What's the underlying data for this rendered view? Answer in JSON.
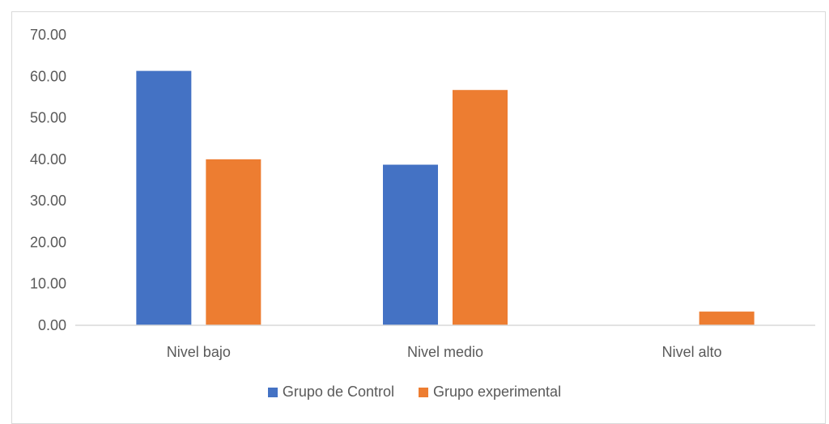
{
  "chart_data": {
    "type": "bar",
    "categories": [
      "Nivel bajo",
      "Nivel medio",
      "Nivel alto"
    ],
    "series": [
      {
        "name": "Grupo de Control",
        "values": [
          61.3,
          38.7,
          0.0
        ],
        "color": "#4472C4"
      },
      {
        "name": "Grupo experimental",
        "values": [
          40.0,
          56.7,
          3.3
        ],
        "color": "#ED7D31"
      }
    ],
    "ylim": [
      0,
      70
    ],
    "yticks": [
      "0.00",
      "10.00",
      "20.00",
      "30.00",
      "40.00",
      "50.00",
      "60.00",
      "70.00"
    ],
    "grid": false,
    "legend_position": "bottom"
  }
}
